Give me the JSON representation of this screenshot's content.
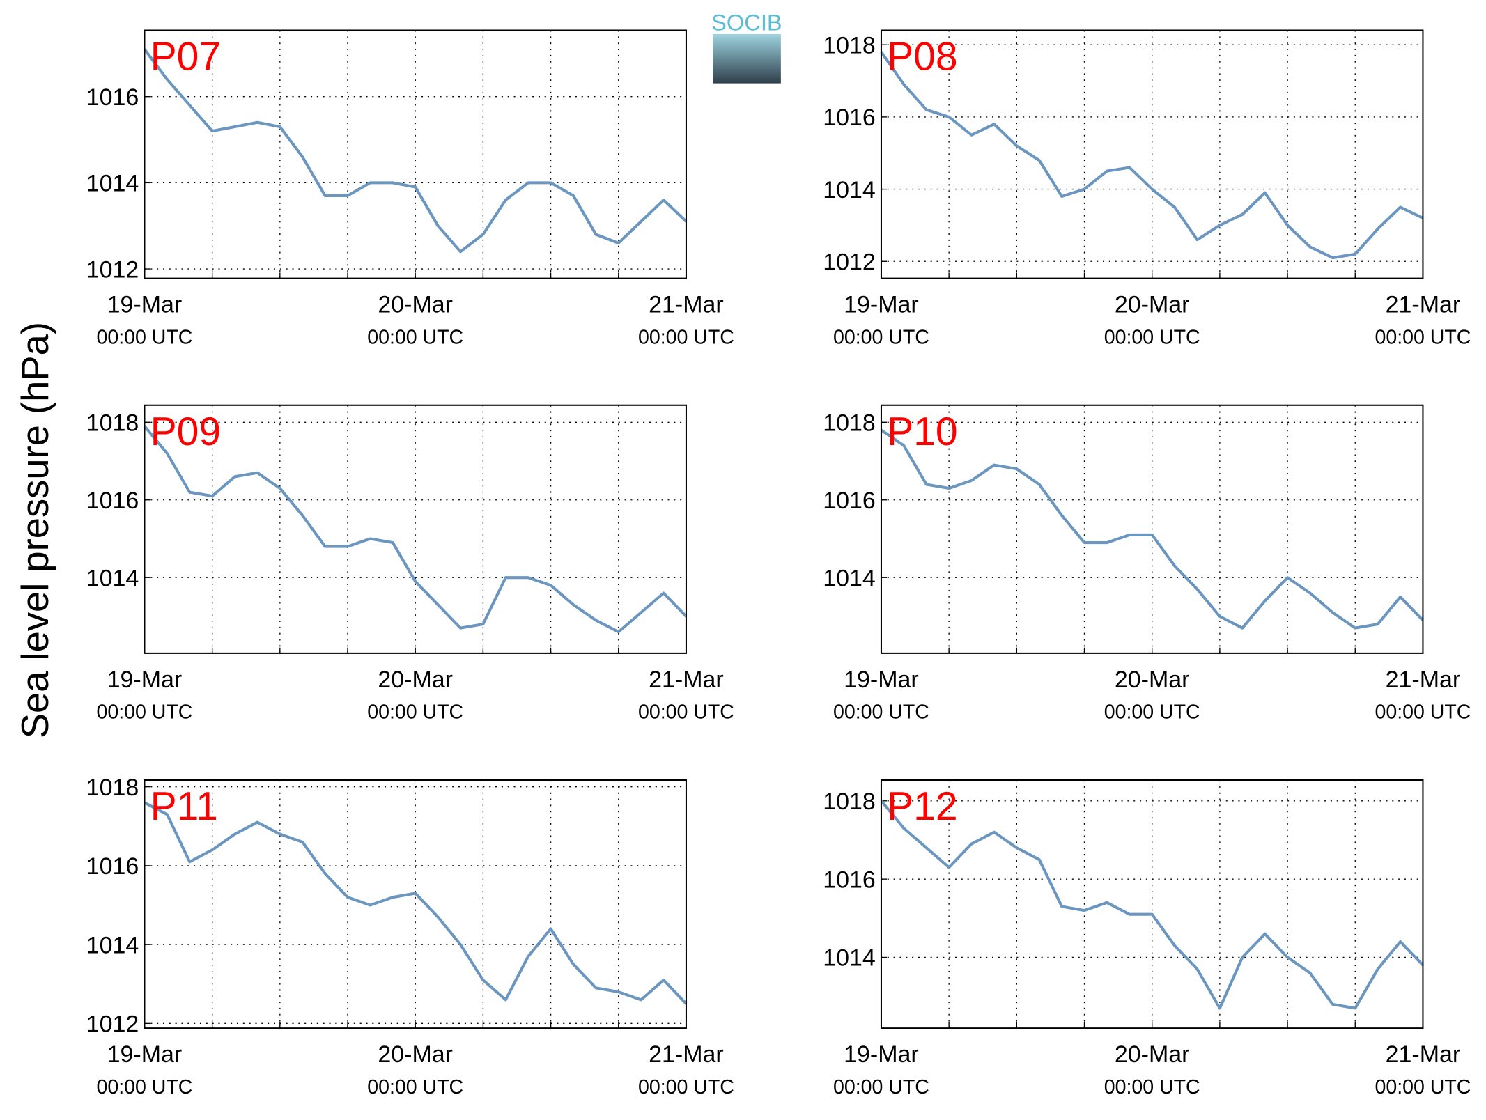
{
  "figure": {
    "ylabel": "Sea level pressure (hPa)",
    "logo": "SOCIB"
  },
  "chart_data": [
    {
      "type": "line",
      "title": "P07",
      "x": [
        0,
        2,
        4,
        6,
        8,
        10,
        12,
        14,
        16,
        18,
        20,
        22,
        24,
        26,
        28,
        30,
        32,
        34,
        36,
        38,
        40,
        42,
        44,
        46,
        48
      ],
      "series": [
        {
          "color": "#6b96bf",
          "values": [
            1017.1,
            1016.4,
            1015.8,
            1015.2,
            1015.3,
            1015.4,
            1015.3,
            1014.6,
            1013.7,
            1013.7,
            1014.0,
            1014.0,
            1013.9,
            1013.0,
            1012.4,
            1012.8,
            1013.6,
            1014.0,
            1014.0,
            1013.7,
            1012.8,
            1012.6,
            1013.1,
            1013.6,
            1013.1
          ]
        }
      ],
      "xlim": [
        0,
        48
      ],
      "xticks": [
        0,
        6,
        12,
        18,
        24,
        30,
        36,
        42,
        48
      ],
      "xticklabels": [
        {
          "value": 0,
          "label": "19-Mar",
          "sublabel": "00:00 UTC"
        },
        {
          "value": 24,
          "label": "20-Mar",
          "sublabel": "00:00 UTC"
        },
        {
          "value": 48,
          "label": "21-Mar",
          "sublabel": "00:00 UTC"
        }
      ],
      "ylim": [
        1011.78,
        1017.54
      ],
      "yticks": [
        1012,
        1014,
        1016
      ],
      "grid": true
    },
    {
      "type": "line",
      "title": "P08",
      "x": [
        0,
        2,
        4,
        6,
        8,
        10,
        12,
        14,
        16,
        18,
        20,
        22,
        24,
        26,
        28,
        30,
        32,
        34,
        36,
        38,
        40,
        42,
        44,
        46,
        48
      ],
      "series": [
        {
          "color": "#6b96bf",
          "values": [
            1017.8,
            1016.9,
            1016.2,
            1016.0,
            1015.5,
            1015.8,
            1015.2,
            1014.8,
            1013.8,
            1014.0,
            1014.5,
            1014.6,
            1014.0,
            1013.5,
            1012.6,
            1013.0,
            1013.3,
            1013.9,
            1013.0,
            1012.4,
            1012.1,
            1012.2,
            1012.9,
            1013.5,
            1013.2
          ]
        }
      ],
      "xlim": [
        0,
        48
      ],
      "xticks": [
        0,
        6,
        12,
        18,
        24,
        30,
        36,
        42,
        48
      ],
      "xticklabels": [
        {
          "value": 0,
          "label": "19-Mar",
          "sublabel": "00:00 UTC"
        },
        {
          "value": 24,
          "label": "20-Mar",
          "sublabel": "00:00 UTC"
        },
        {
          "value": 48,
          "label": "21-Mar",
          "sublabel": "00:00 UTC"
        }
      ],
      "ylim": [
        1011.53,
        1018.4
      ],
      "yticks": [
        1012,
        1014,
        1016,
        1018
      ],
      "grid": true
    },
    {
      "type": "line",
      "title": "P09",
      "x": [
        0,
        2,
        4,
        6,
        8,
        10,
        12,
        14,
        16,
        18,
        20,
        22,
        24,
        26,
        28,
        30,
        32,
        34,
        36,
        38,
        40,
        42,
        44,
        46,
        48
      ],
      "series": [
        {
          "color": "#6b96bf",
          "values": [
            1017.9,
            1017.2,
            1016.2,
            1016.1,
            1016.6,
            1016.7,
            1016.3,
            1015.6,
            1014.8,
            1014.8,
            1015.0,
            1014.9,
            1013.9,
            1013.3,
            1012.7,
            1012.8,
            1014.0,
            1014.0,
            1013.8,
            1013.3,
            1012.9,
            1012.6,
            1013.1,
            1013.6,
            1013.0
          ]
        }
      ],
      "xlim": [
        0,
        48
      ],
      "xticks": [
        0,
        6,
        12,
        18,
        24,
        30,
        36,
        42,
        48
      ],
      "xticklabels": [
        {
          "value": 0,
          "label": "19-Mar",
          "sublabel": "00:00 UTC"
        },
        {
          "value": 24,
          "label": "20-Mar",
          "sublabel": "00:00 UTC"
        },
        {
          "value": 48,
          "label": "21-Mar",
          "sublabel": "00:00 UTC"
        }
      ],
      "ylim": [
        1012.05,
        1018.44
      ],
      "yticks": [
        1014,
        1016,
        1018
      ],
      "grid": true
    },
    {
      "type": "line",
      "title": "P10",
      "x": [
        0,
        2,
        4,
        6,
        8,
        10,
        12,
        14,
        16,
        18,
        20,
        22,
        24,
        26,
        28,
        30,
        32,
        34,
        36,
        38,
        40,
        42,
        44,
        46,
        48
      ],
      "series": [
        {
          "color": "#6b96bf",
          "values": [
            1017.8,
            1017.4,
            1016.4,
            1016.3,
            1016.5,
            1016.9,
            1016.8,
            1016.4,
            1015.6,
            1014.9,
            1014.9,
            1015.1,
            1015.1,
            1014.3,
            1013.7,
            1013.0,
            1012.7,
            1013.4,
            1014.0,
            1013.6,
            1013.1,
            1012.7,
            1012.8,
            1013.5,
            1012.9
          ]
        }
      ],
      "xlim": [
        0,
        48
      ],
      "xticks": [
        0,
        6,
        12,
        18,
        24,
        30,
        36,
        42,
        48
      ],
      "xticklabels": [
        {
          "value": 0,
          "label": "19-Mar",
          "sublabel": "00:00 UTC"
        },
        {
          "value": 24,
          "label": "20-Mar",
          "sublabel": "00:00 UTC"
        },
        {
          "value": 48,
          "label": "21-Mar",
          "sublabel": "00:00 UTC"
        }
      ],
      "ylim": [
        1012.05,
        1018.44
      ],
      "yticks": [
        1014,
        1016,
        1018
      ],
      "grid": true
    },
    {
      "type": "line",
      "title": "P11",
      "x": [
        0,
        2,
        4,
        6,
        8,
        10,
        12,
        14,
        16,
        18,
        20,
        22,
        24,
        26,
        28,
        30,
        32,
        34,
        36,
        38,
        40,
        42,
        44,
        46,
        48
      ],
      "series": [
        {
          "color": "#6b96bf",
          "values": [
            1017.6,
            1017.3,
            1016.1,
            1016.4,
            1016.8,
            1017.1,
            1016.8,
            1016.6,
            1015.8,
            1015.2,
            1015.0,
            1015.2,
            1015.3,
            1014.7,
            1014.0,
            1013.1,
            1012.6,
            1013.7,
            1014.4,
            1013.5,
            1012.9,
            1012.8,
            1012.6,
            1013.1,
            1012.5
          ]
        }
      ],
      "xlim": [
        0,
        48
      ],
      "xticks": [
        0,
        6,
        12,
        18,
        24,
        30,
        36,
        42,
        48
      ],
      "xticklabels": [
        {
          "value": 0,
          "label": "19-Mar",
          "sublabel": "00:00 UTC"
        },
        {
          "value": 24,
          "label": "20-Mar",
          "sublabel": "00:00 UTC"
        },
        {
          "value": 48,
          "label": "21-Mar",
          "sublabel": "00:00 UTC"
        }
      ],
      "ylim": [
        1011.88,
        1018.17
      ],
      "yticks": [
        1012,
        1014,
        1016,
        1018
      ],
      "grid": true
    },
    {
      "type": "line",
      "title": "P12",
      "x": [
        0,
        2,
        4,
        6,
        8,
        10,
        12,
        14,
        16,
        18,
        20,
        22,
        24,
        26,
        28,
        30,
        32,
        34,
        36,
        38,
        40,
        42,
        44,
        46,
        48
      ],
      "series": [
        {
          "color": "#6b96bf",
          "values": [
            1018.0,
            1017.3,
            1016.8,
            1016.3,
            1016.9,
            1017.2,
            1016.8,
            1016.5,
            1015.3,
            1015.2,
            1015.4,
            1015.1,
            1015.1,
            1014.3,
            1013.7,
            1012.7,
            1014.0,
            1014.6,
            1014.0,
            1013.6,
            1012.8,
            1012.7,
            1013.7,
            1014.4,
            1013.8
          ]
        }
      ],
      "xlim": [
        0,
        48
      ],
      "xticks": [
        0,
        6,
        12,
        18,
        24,
        30,
        36,
        42,
        48
      ],
      "xticklabels": [
        {
          "value": 0,
          "label": "19-Mar",
          "sublabel": "00:00 UTC"
        },
        {
          "value": 24,
          "label": "20-Mar",
          "sublabel": "00:00 UTC"
        },
        {
          "value": 48,
          "label": "21-Mar",
          "sublabel": "00:00 UTC"
        }
      ],
      "ylim": [
        1012.19,
        1018.53
      ],
      "yticks": [
        1014,
        1016,
        1018
      ],
      "grid": true
    }
  ]
}
